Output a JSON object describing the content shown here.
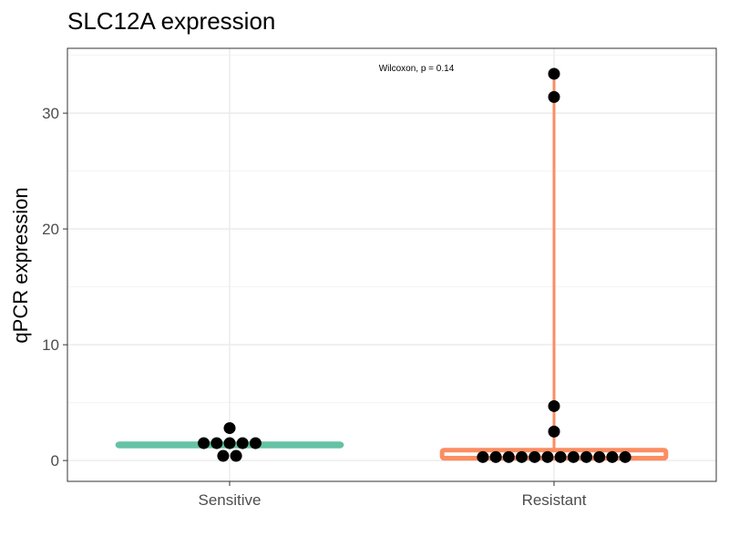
{
  "chart_data": {
    "type": "box+dotplot",
    "title": "SLC12A expression",
    "xlabel": "",
    "ylabel": "qPCR expression",
    "categories": [
      "Sensitive",
      "Resistant"
    ],
    "ylim": [
      -1.8,
      35.6
    ],
    "yticks": [
      0,
      10,
      20,
      30
    ],
    "grid": true,
    "legend": "none",
    "annotation": "Wilcoxon, p = 0.14",
    "groups": [
      {
        "name": "Sensitive",
        "color": "#66C2A5",
        "box": {
          "q1": 1.25,
          "median": 1.35,
          "q3": 1.45,
          "whisker_low": 1.25,
          "whisker_high": 1.45
        },
        "points": [
          {
            "y": 2.8,
            "offset": 0
          },
          {
            "y": 1.5,
            "offset": -2
          },
          {
            "y": 1.5,
            "offset": -1
          },
          {
            "y": 1.5,
            "offset": 0
          },
          {
            "y": 1.5,
            "offset": 1
          },
          {
            "y": 1.5,
            "offset": 2
          },
          {
            "y": 0.4,
            "offset": -0.5
          },
          {
            "y": 0.4,
            "offset": 0.5
          }
        ]
      },
      {
        "name": "Resistant",
        "color": "#FC8D62",
        "box": {
          "q1": 0.2,
          "median": 0.2,
          "q3": 0.9,
          "whisker_low": 0.2,
          "whisker_high": 33.4
        },
        "points": [
          {
            "y": 33.4,
            "offset": 0
          },
          {
            "y": 31.4,
            "offset": 0
          },
          {
            "y": 4.7,
            "offset": 0
          },
          {
            "y": 2.5,
            "offset": 0
          },
          {
            "y": 0.3,
            "offset": -5.5
          },
          {
            "y": 0.3,
            "offset": -4.5
          },
          {
            "y": 0.3,
            "offset": -3.5
          },
          {
            "y": 0.3,
            "offset": -2.5
          },
          {
            "y": 0.3,
            "offset": -1.5
          },
          {
            "y": 0.3,
            "offset": -0.5
          },
          {
            "y": 0.3,
            "offset": 0.5
          },
          {
            "y": 0.3,
            "offset": 1.5
          },
          {
            "y": 0.3,
            "offset": 2.5
          },
          {
            "y": 0.3,
            "offset": 3.5
          },
          {
            "y": 0.3,
            "offset": 4.5
          },
          {
            "y": 0.3,
            "offset": 5.5
          }
        ]
      }
    ]
  }
}
